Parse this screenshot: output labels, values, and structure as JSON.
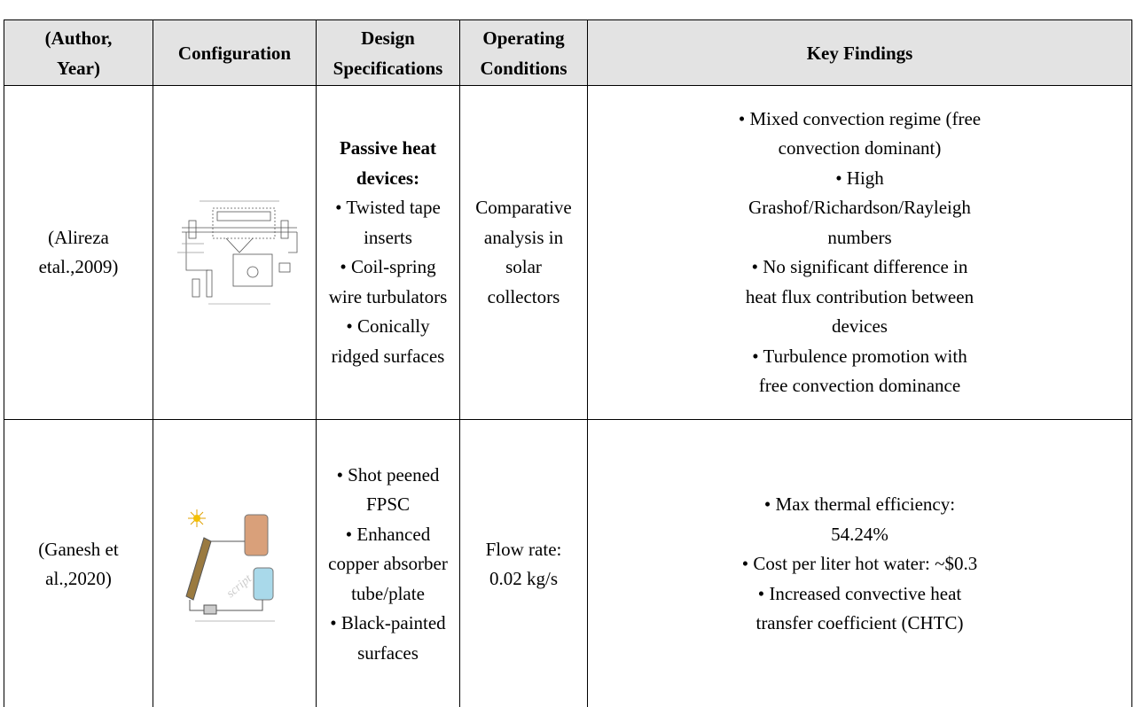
{
  "table": {
    "header": [
      [
        "(Author,",
        "Year)"
      ],
      [
        "Configuration"
      ],
      [
        "Design",
        "Specifications"
      ],
      [
        "Operating",
        "Conditions"
      ],
      [
        "Key Findings"
      ]
    ],
    "rows": [
      {
        "author": [
          "(Alireza",
          "etal.,2009)"
        ],
        "design": {
          "heading": [
            "Passive heat",
            "devices:"
          ],
          "items": [
            "• Twisted tape",
            "inserts",
            "•  Coil-spring",
            "wire turbulators",
            "•  Conically",
            "ridged surfaces"
          ]
        },
        "conditions": [
          "Comparative",
          "analysis in",
          "solar",
          "collectors"
        ],
        "findings": [
          "• Mixed convection regime (free",
          "convection dominant)",
          "• High",
          "Grashof/Richardson/Rayleigh",
          "numbers",
          "• No significant difference in",
          "heat flux contribution between",
          "devices",
          "• Turbulence promotion with",
          "free convection dominance"
        ]
      },
      {
        "author": [
          "(Ganesh et",
          "al.,2020)"
        ],
        "design": {
          "items": [
            "• Shot peened",
            "FPSC",
            "• Enhanced",
            "copper absorber",
            "tube/plate",
            "• Black-painted",
            "surfaces"
          ]
        },
        "conditions": [
          "Flow rate:",
          "0.02 kg/s"
        ],
        "findings": [
          "• Max thermal efficiency:",
          "54.24%",
          "• Cost per liter hot water: ~$0.3",
          "• Increased convective heat",
          "transfer coefficient (CHTC)"
        ]
      }
    ]
  }
}
